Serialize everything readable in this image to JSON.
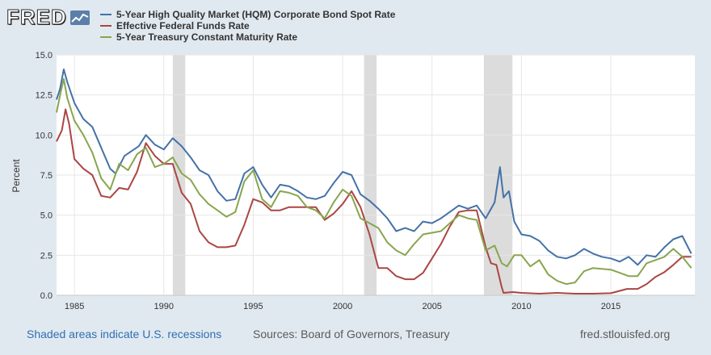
{
  "brand": {
    "name": "FRED"
  },
  "legend": [
    {
      "label": "5-Year High Quality Market (HQM) Corporate Bond Spot Rate",
      "color": "#4572a7"
    },
    {
      "label": "Effective Federal Funds Rate",
      "color": "#aa4643"
    },
    {
      "label": "5-Year Treasury Constant Maturity Rate",
      "color": "#89a54e"
    }
  ],
  "footer": {
    "note": "Shaded areas indicate U.S. recessions",
    "sources": "Sources: Board of Governors, Treasury",
    "url": "fred.stlouisfed.org"
  },
  "chart_data": {
    "type": "line",
    "ylabel": "Percent",
    "ylim": [
      0,
      15
    ],
    "xlim": [
      1984.0,
      2019.7
    ],
    "yticks": [
      "0.0",
      "2.5",
      "5.0",
      "7.5",
      "10.0",
      "12.5",
      "15.0"
    ],
    "xticks": [
      "1985",
      "1990",
      "1995",
      "2000",
      "2005",
      "2010",
      "2015"
    ],
    "grid": true,
    "recessions": [
      [
        1990.5,
        1991.2
      ],
      [
        2001.2,
        2001.9
      ],
      [
        2007.9,
        2009.5
      ]
    ],
    "series": [
      {
        "name": "5-Year High Quality Market (HQM) Corporate Bond Spot Rate",
        "color": "#4572a7",
        "x": [
          1984.0,
          1984.2,
          1984.4,
          1984.6,
          1985.0,
          1985.5,
          1986.0,
          1986.5,
          1987.0,
          1987.3,
          1987.8,
          1988.2,
          1988.6,
          1989.0,
          1989.5,
          1990.0,
          1990.5,
          1991.0,
          1991.5,
          1992.0,
          1992.5,
          1993.0,
          1993.5,
          1994.0,
          1994.5,
          1995.0,
          1995.5,
          1996.0,
          1996.5,
          1997.0,
          1997.5,
          1998.0,
          1998.5,
          1999.0,
          1999.5,
          2000.0,
          2000.5,
          2001.0,
          2001.5,
          2002.0,
          2002.5,
          2003.0,
          2003.5,
          2004.0,
          2004.5,
          2005.0,
          2005.5,
          2006.0,
          2006.5,
          2007.0,
          2007.5,
          2008.0,
          2008.5,
          2008.8,
          2009.0,
          2009.3,
          2009.6,
          2010.0,
          2010.5,
          2011.0,
          2011.5,
          2012.0,
          2012.5,
          2013.0,
          2013.5,
          2014.0,
          2014.5,
          2015.0,
          2015.5,
          2016.0,
          2016.5,
          2017.0,
          2017.5,
          2018.0,
          2018.5,
          2019.0,
          2019.5
        ],
        "y": [
          12.2,
          12.9,
          14.1,
          13.3,
          12.0,
          11.0,
          10.5,
          9.2,
          7.9,
          7.6,
          8.7,
          9.0,
          9.3,
          10.0,
          9.4,
          9.1,
          9.8,
          9.3,
          8.6,
          7.8,
          7.5,
          6.5,
          5.9,
          6.0,
          7.6,
          8.0,
          6.9,
          6.1,
          6.9,
          6.8,
          6.5,
          6.1,
          6.0,
          6.2,
          7.0,
          7.7,
          7.5,
          6.3,
          5.9,
          5.4,
          4.8,
          4.0,
          4.2,
          4.0,
          4.6,
          4.5,
          4.8,
          5.2,
          5.6,
          5.4,
          5.6,
          4.8,
          5.8,
          8.0,
          6.1,
          6.5,
          4.6,
          3.8,
          3.7,
          3.4,
          2.8,
          2.4,
          2.3,
          2.5,
          2.9,
          2.6,
          2.4,
          2.3,
          2.1,
          2.4,
          1.9,
          2.5,
          2.4,
          3.0,
          3.5,
          3.7,
          2.6
        ]
      },
      {
        "name": "Effective Federal Funds Rate",
        "color": "#aa4643",
        "x": [
          1984.0,
          1984.3,
          1984.5,
          1984.7,
          1985.0,
          1985.5,
          1986.0,
          1986.5,
          1987.0,
          1987.5,
          1988.0,
          1988.5,
          1989.0,
          1989.5,
          1990.0,
          1990.5,
          1991.0,
          1991.5,
          1992.0,
          1992.5,
          1993.0,
          1993.5,
          1994.0,
          1994.5,
          1995.0,
          1995.5,
          1996.0,
          1996.5,
          1997.0,
          1997.5,
          1998.0,
          1998.5,
          1999.0,
          1999.5,
          2000.0,
          2000.5,
          2001.0,
          2001.5,
          2002.0,
          2002.5,
          2003.0,
          2003.5,
          2004.0,
          2004.5,
          2005.0,
          2005.5,
          2006.0,
          2006.5,
          2007.0,
          2007.5,
          2008.0,
          2008.3,
          2008.6,
          2008.9,
          2009.0,
          2009.5,
          2010.0,
          2011.0,
          2012.0,
          2013.0,
          2014.0,
          2015.0,
          2015.9,
          2016.5,
          2017.0,
          2017.5,
          2018.0,
          2018.5,
          2019.0,
          2019.5
        ],
        "y": [
          9.6,
          10.3,
          11.6,
          10.7,
          8.5,
          7.9,
          7.5,
          6.2,
          6.1,
          6.7,
          6.6,
          7.7,
          9.5,
          8.7,
          8.2,
          8.2,
          6.4,
          5.7,
          4.0,
          3.3,
          3.0,
          3.0,
          3.1,
          4.4,
          6.0,
          5.8,
          5.3,
          5.3,
          5.5,
          5.5,
          5.5,
          5.5,
          4.7,
          5.1,
          5.7,
          6.5,
          5.5,
          3.8,
          1.7,
          1.7,
          1.2,
          1.0,
          1.0,
          1.4,
          2.3,
          3.2,
          4.3,
          5.2,
          5.3,
          5.3,
          3.0,
          2.0,
          1.9,
          0.5,
          0.15,
          0.2,
          0.15,
          0.1,
          0.15,
          0.1,
          0.1,
          0.13,
          0.4,
          0.4,
          0.7,
          1.15,
          1.45,
          1.9,
          2.4,
          2.4
        ]
      },
      {
        "name": "5-Year Treasury Constant Maturity Rate",
        "color": "#89a54e",
        "x": [
          1984.0,
          1984.2,
          1984.4,
          1984.6,
          1985.0,
          1985.5,
          1986.0,
          1986.5,
          1987.0,
          1987.5,
          1988.0,
          1988.5,
          1989.0,
          1989.5,
          1990.0,
          1990.5,
          1991.0,
          1991.5,
          1992.0,
          1992.5,
          1993.0,
          1993.5,
          1994.0,
          1994.5,
          1995.0,
          1995.5,
          1996.0,
          1996.5,
          1997.0,
          1997.5,
          1998.0,
          1998.5,
          1999.0,
          1999.5,
          2000.0,
          2000.5,
          2001.0,
          2001.5,
          2002.0,
          2002.5,
          2003.0,
          2003.5,
          2004.0,
          2004.5,
          2005.0,
          2005.5,
          2006.0,
          2006.5,
          2007.0,
          2007.5,
          2008.0,
          2008.5,
          2008.9,
          2009.2,
          2009.6,
          2010.0,
          2010.5,
          2011.0,
          2011.5,
          2012.0,
          2012.5,
          2013.0,
          2013.5,
          2014.0,
          2015.0,
          2016.0,
          2016.5,
          2017.0,
          2018.0,
          2018.5,
          2019.0,
          2019.5
        ],
        "y": [
          11.4,
          12.5,
          13.5,
          12.3,
          10.9,
          10.0,
          8.9,
          7.3,
          6.6,
          8.2,
          7.8,
          8.8,
          9.2,
          8.0,
          8.2,
          8.6,
          7.6,
          7.2,
          6.3,
          5.7,
          5.3,
          4.9,
          5.2,
          7.1,
          7.8,
          6.0,
          5.5,
          6.5,
          6.4,
          6.2,
          5.5,
          5.3,
          4.8,
          5.8,
          6.6,
          6.2,
          4.8,
          4.5,
          4.2,
          3.3,
          2.8,
          2.5,
          3.2,
          3.8,
          3.9,
          4.0,
          4.5,
          5.0,
          4.8,
          4.7,
          2.8,
          3.1,
          2.0,
          1.8,
          2.5,
          2.5,
          1.8,
          2.2,
          1.3,
          0.9,
          0.7,
          0.8,
          1.5,
          1.7,
          1.6,
          1.2,
          1.2,
          2.0,
          2.4,
          2.9,
          2.4,
          1.7
        ]
      }
    ]
  }
}
